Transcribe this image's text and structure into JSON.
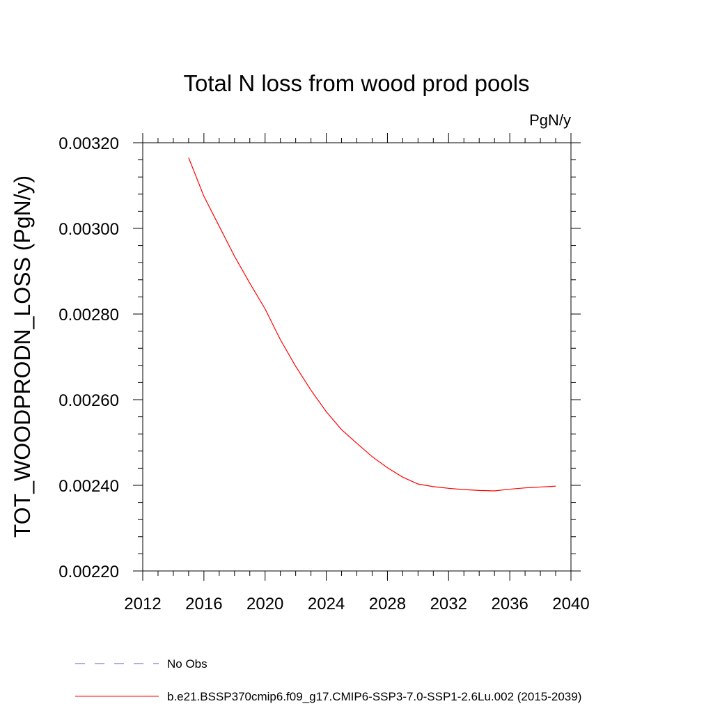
{
  "chart_data": {
    "type": "line",
    "title": "Total N loss from wood prod pools",
    "units_label": "PgN/y",
    "xlabel": "",
    "ylabel": "TOT_WOODPRODN_LOSS  (PgN/y)",
    "xlim": [
      2012,
      2040
    ],
    "ylim": [
      0.0022,
      0.0032
    ],
    "x_ticks": [
      2012,
      2016,
      2020,
      2024,
      2028,
      2032,
      2036,
      2040
    ],
    "x_tick_labels": [
      "2012",
      "2016",
      "2020",
      "2024",
      "2028",
      "2032",
      "2036",
      "2040"
    ],
    "y_ticks": [
      0.0022,
      0.0024,
      0.0026,
      0.0028,
      0.003,
      0.0032
    ],
    "y_tick_labels": [
      "0.00220",
      "0.00240",
      "0.00260",
      "0.00280",
      "0.00300",
      "0.00320"
    ],
    "grid": false,
    "legend_position": "bottom",
    "series": [
      {
        "name": "No Obs",
        "color": "#6a5acd",
        "dash": "dashed",
        "x": [],
        "y": []
      },
      {
        "name": "b.e21.BSSP370cmip6.f09_g17.CMIP6-SSP3-7.0-SSP1-2.6Lu.002 (2015-2039)",
        "color": "#ff0000",
        "dash": "solid",
        "x": [
          2015,
          2016,
          2017,
          2018,
          2019,
          2020,
          2021,
          2022,
          2023,
          2024,
          2025,
          2026,
          2027,
          2028,
          2029,
          2030,
          2031,
          2032,
          2033,
          2034,
          2035,
          2036,
          2037,
          2038,
          2039
        ],
        "y": [
          0.003165,
          0.003075,
          0.003005,
          0.002935,
          0.002872,
          0.002812,
          0.00274,
          0.002678,
          0.002622,
          0.002572,
          0.00253,
          0.002498,
          0.002467,
          0.002441,
          0.002419,
          0.002403,
          0.002397,
          0.002393,
          0.00239,
          0.002388,
          0.002387,
          0.002391,
          0.002394,
          0.002396,
          0.002398
        ]
      }
    ]
  }
}
